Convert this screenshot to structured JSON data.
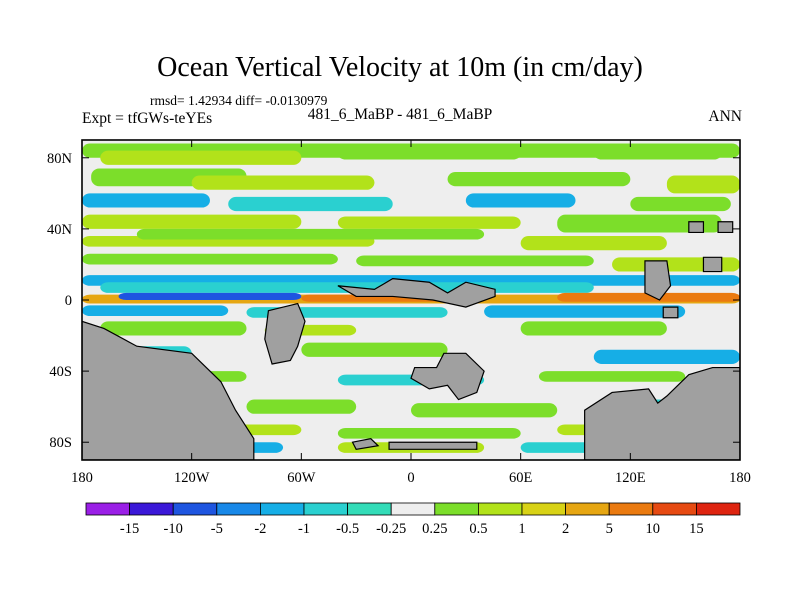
{
  "chart_data": {
    "type": "heatmap",
    "title": "Ocean Vertical Velocity at 10m (in cm/day)",
    "stats_text": "rmsd= 1.42934 diff= -0.0130979",
    "left_label": "Expt = tfGWs-teYEs",
    "center_label": "481_6_MaBP - 481_6_MaBP",
    "right_label": "ANN",
    "x_ticks": [
      "180",
      "120W",
      "60W",
      "0",
      "60E",
      "120E",
      "180"
    ],
    "x_tick_values": [
      -180,
      -120,
      -60,
      0,
      60,
      120,
      180
    ],
    "y_ticks": [
      "80N",
      "40N",
      "0",
      "40S",
      "80S"
    ],
    "y_tick_values": [
      80,
      40,
      0,
      -40,
      -80
    ],
    "xlim": [
      -180,
      180
    ],
    "ylim": [
      -90,
      90
    ],
    "colorbar": {
      "labels": [
        "-15",
        "-10",
        "-5",
        "-2",
        "-1",
        "-0.5",
        "-0.25",
        "0.25",
        "0.5",
        "1",
        "2",
        "5",
        "10",
        "15"
      ],
      "colors": [
        "#9a1fe6",
        "#3b18d8",
        "#1e55e0",
        "#1888e8",
        "#16aee6",
        "#2ad0d0",
        "#33dcb8",
        "#eeeeee",
        "#7cde2a",
        "#b2e21a",
        "#d8d216",
        "#e6a612",
        "#ea7a10",
        "#e64a12",
        "#de2410"
      ]
    },
    "land_color": "#a0a0a0"
  }
}
